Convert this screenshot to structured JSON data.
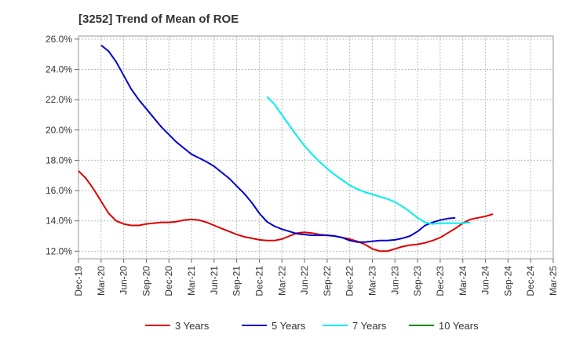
{
  "chart_data": {
    "type": "line",
    "title": "[3252]  Trend of Mean of ROE",
    "xlabel": "",
    "ylabel": "",
    "x_ticks": [
      "Dec-19",
      "Mar-20",
      "Jun-20",
      "Sep-20",
      "Dec-20",
      "Mar-21",
      "Jun-21",
      "Sep-21",
      "Dec-21",
      "Mar-22",
      "Jun-22",
      "Sep-22",
      "Dec-22",
      "Mar-23",
      "Jun-23",
      "Sep-23",
      "Dec-23",
      "Mar-24",
      "Jun-24",
      "Sep-24",
      "Dec-24",
      "Mar-25"
    ],
    "y_ticks": [
      "12.0%",
      "14.0%",
      "16.0%",
      "18.0%",
      "20.0%",
      "22.0%",
      "24.0%",
      "26.0%"
    ],
    "ylim": [
      11.5,
      26.2
    ],
    "grid": true,
    "legend_position": "bottom",
    "series": [
      {
        "name": "3 Years",
        "color": "#dd0000",
        "start_index": 0,
        "values": [
          17.3,
          16.8,
          16.1,
          15.3,
          14.5,
          14.0,
          13.8,
          13.7,
          13.7,
          13.8,
          13.85,
          13.9,
          13.9,
          13.95,
          14.05,
          14.1,
          14.05,
          13.9,
          13.7,
          13.5,
          13.3,
          13.1,
          12.95,
          12.85,
          12.75,
          12.7,
          12.7,
          12.8,
          13.0,
          13.2,
          13.25,
          13.2,
          13.1,
          13.05,
          13.0,
          12.9,
          12.8,
          12.65,
          12.45,
          12.15,
          12.0,
          12.0,
          12.15,
          12.3,
          12.4,
          12.45,
          12.55,
          12.7,
          12.9,
          13.2,
          13.5,
          13.85,
          14.1,
          14.2,
          14.3,
          14.45
        ]
      },
      {
        "name": "5 Years",
        "color": "#0000cc",
        "start_index": 3,
        "values": [
          25.6,
          25.2,
          24.5,
          23.6,
          22.7,
          22.0,
          21.4,
          20.8,
          20.2,
          19.7,
          19.2,
          18.8,
          18.4,
          18.15,
          17.9,
          17.6,
          17.2,
          16.8,
          16.3,
          15.8,
          15.2,
          14.5,
          13.95,
          13.65,
          13.45,
          13.3,
          13.15,
          13.1,
          13.05,
          13.05,
          13.05,
          13.0,
          12.9,
          12.7,
          12.6,
          12.6,
          12.65,
          12.7,
          12.7,
          12.75,
          12.85,
          13.0,
          13.3,
          13.7,
          13.9,
          14.05,
          14.15,
          14.2
        ]
      },
      {
        "name": "7 Years",
        "color": "#00eeee",
        "start_index": 25,
        "values": [
          22.2,
          21.7,
          21.0,
          20.3,
          19.6,
          18.95,
          18.4,
          17.9,
          17.45,
          17.05,
          16.7,
          16.35,
          16.1,
          15.9,
          15.75,
          15.6,
          15.45,
          15.25,
          14.95,
          14.6,
          14.2,
          13.9,
          13.8,
          13.85,
          13.85,
          13.85,
          13.85,
          13.9
        ]
      },
      {
        "name": "10 Years",
        "color": "#008800",
        "start_index": 0,
        "values": []
      }
    ]
  }
}
